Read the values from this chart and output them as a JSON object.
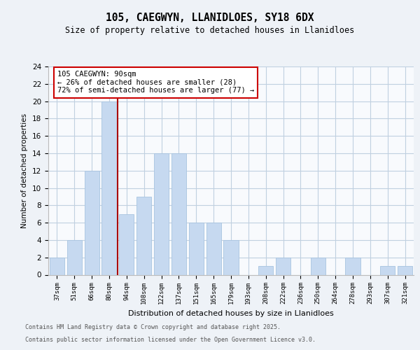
{
  "title1": "105, CAEGWYN, LLANIDLOES, SY18 6DX",
  "title2": "Size of property relative to detached houses in Llanidloes",
  "xlabel": "Distribution of detached houses by size in Llanidloes",
  "ylabel": "Number of detached properties",
  "bar_labels": [
    "37sqm",
    "51sqm",
    "66sqm",
    "80sqm",
    "94sqm",
    "108sqm",
    "122sqm",
    "137sqm",
    "151sqm",
    "165sqm",
    "179sqm",
    "193sqm",
    "208sqm",
    "222sqm",
    "236sqm",
    "250sqm",
    "264sqm",
    "278sqm",
    "293sqm",
    "307sqm",
    "321sqm"
  ],
  "bar_values": [
    2,
    4,
    12,
    20,
    7,
    9,
    14,
    14,
    6,
    6,
    4,
    0,
    1,
    2,
    0,
    2,
    0,
    2,
    0,
    1,
    1
  ],
  "bar_color": "#c6d9f0",
  "bar_edge_color": "#a8c4e0",
  "annotation_title": "105 CAEGWYN: 90sqm",
  "annotation_line1": "← 26% of detached houses are smaller (28)",
  "annotation_line2": "72% of semi-detached houses are larger (77) →",
  "ylim_max": 24,
  "yticks": [
    0,
    2,
    4,
    6,
    8,
    10,
    12,
    14,
    16,
    18,
    20,
    22,
    24
  ],
  "footer1": "Contains HM Land Registry data © Crown copyright and database right 2025.",
  "footer2": "Contains public sector information licensed under the Open Government Licence v3.0.",
  "background_color": "#eef2f7",
  "plot_bg_color": "#f8fafd",
  "grid_color": "#c0d0e0",
  "line_color": "#aa0000",
  "red_line_bar_index": 3
}
